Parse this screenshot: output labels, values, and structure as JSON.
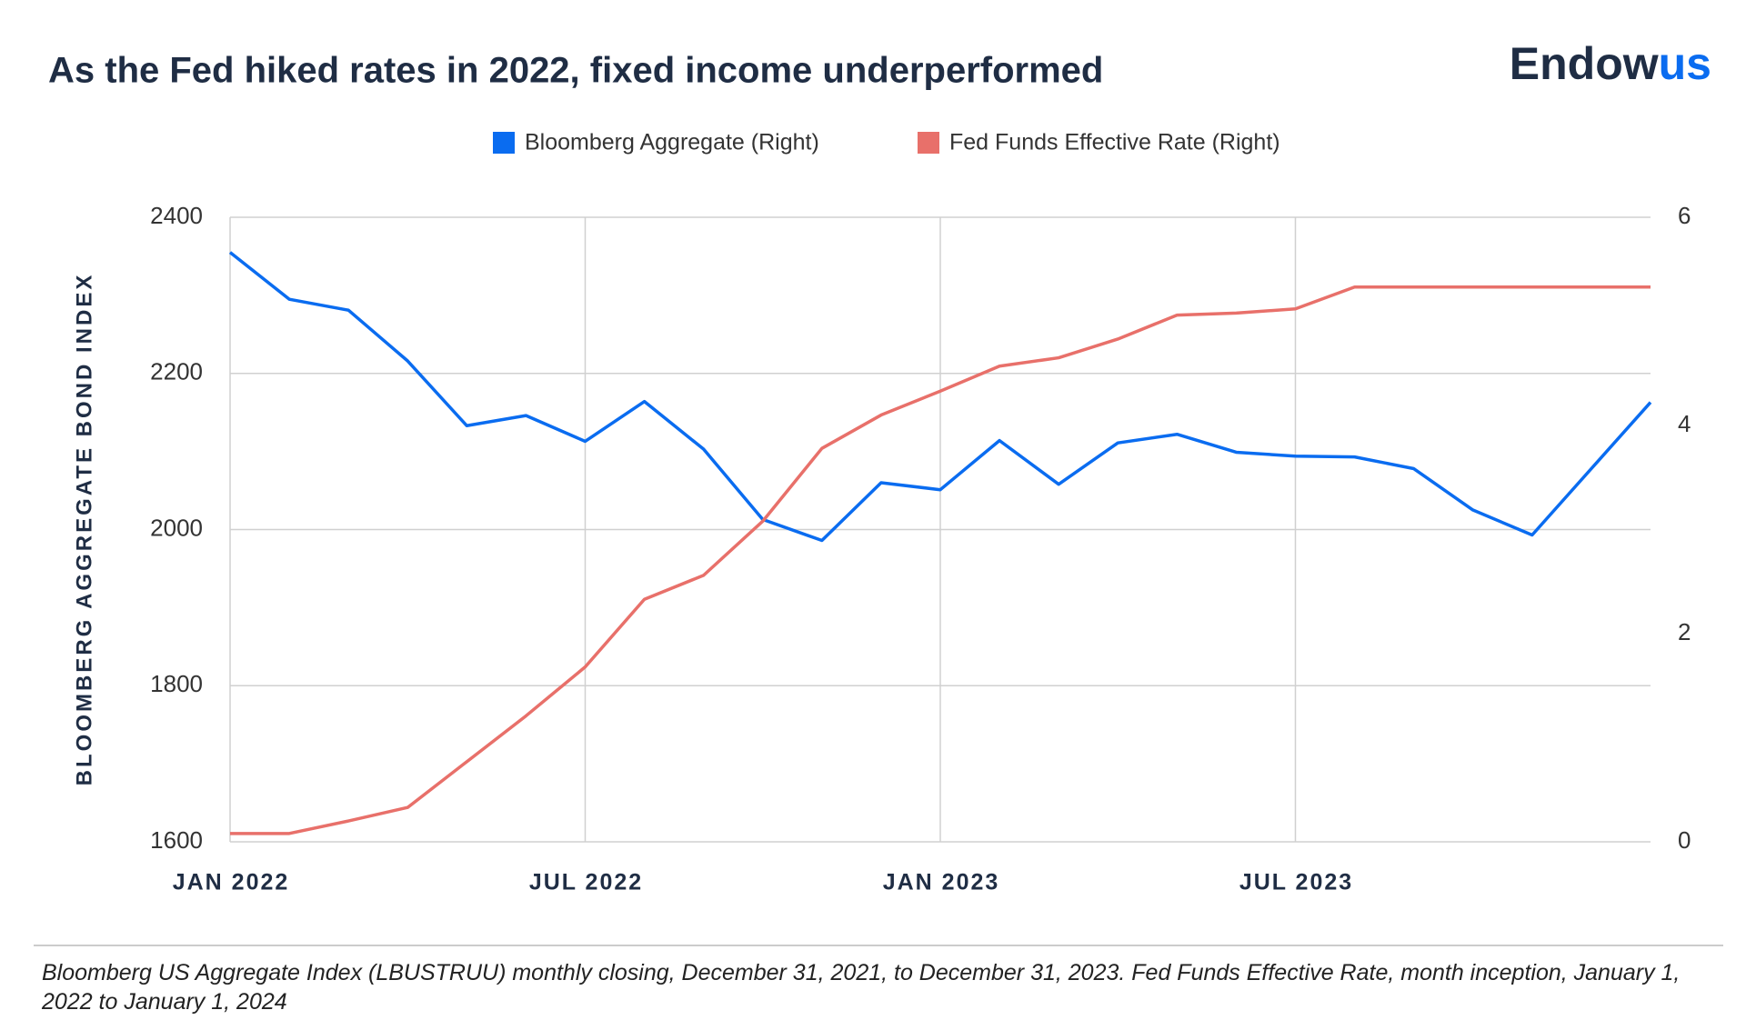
{
  "brand": {
    "text": "Endow",
    "accent": "us"
  },
  "chart_data": {
    "type": "line",
    "title": "As the Fed hiked rates in 2022, fixed income underperformed",
    "y_label": "BLOOMBERG AGGREGATE BOND INDEX",
    "note": "Bloomberg US Aggregate Index (LBUSTRUU) monthly closing, December 31, 2021, to December 31, 2023. Fed Funds Effective Rate, month inception, January 1, 2022 to January 1, 2024",
    "categories": [
      "JAN 2022",
      null,
      null,
      null,
      null,
      null,
      "JUL 2022",
      null,
      null,
      null,
      null,
      null,
      "JAN 2023",
      null,
      null,
      null,
      null,
      null,
      "JUL 2023",
      null,
      null,
      null,
      null,
      null,
      null
    ],
    "series": [
      {
        "name": "Bloomberg Aggregate (Right)",
        "color": "#0a6cf0",
        "axis": "y",
        "values": [
          2355,
          2295,
          2281,
          2216,
          2133,
          2146,
          2113,
          2164,
          2103,
          2013,
          1986,
          2060,
          2051,
          2114,
          2058,
          2111,
          2122,
          2099,
          2094,
          2093,
          2078,
          2025,
          1993,
          2078,
          2163
        ]
      },
      {
        "name": "Fed Funds Effective Rate (Right)",
        "color": "#e8706a",
        "axis": "y2",
        "values": [
          0.08,
          0.08,
          0.2,
          0.33,
          0.77,
          1.21,
          1.68,
          2.33,
          2.56,
          3.08,
          3.78,
          4.1,
          4.33,
          4.57,
          4.65,
          4.83,
          5.06,
          5.08,
          5.12,
          5.33,
          5.33,
          5.33,
          5.33,
          5.33,
          5.33
        ]
      }
    ],
    "ylim": [
      1600,
      2400
    ],
    "yticks": [
      1600,
      1800,
      2000,
      2200,
      2400
    ],
    "y2lim": [
      0,
      6
    ],
    "y2ticks": [
      0,
      2,
      4,
      6
    ],
    "grid": true
  }
}
